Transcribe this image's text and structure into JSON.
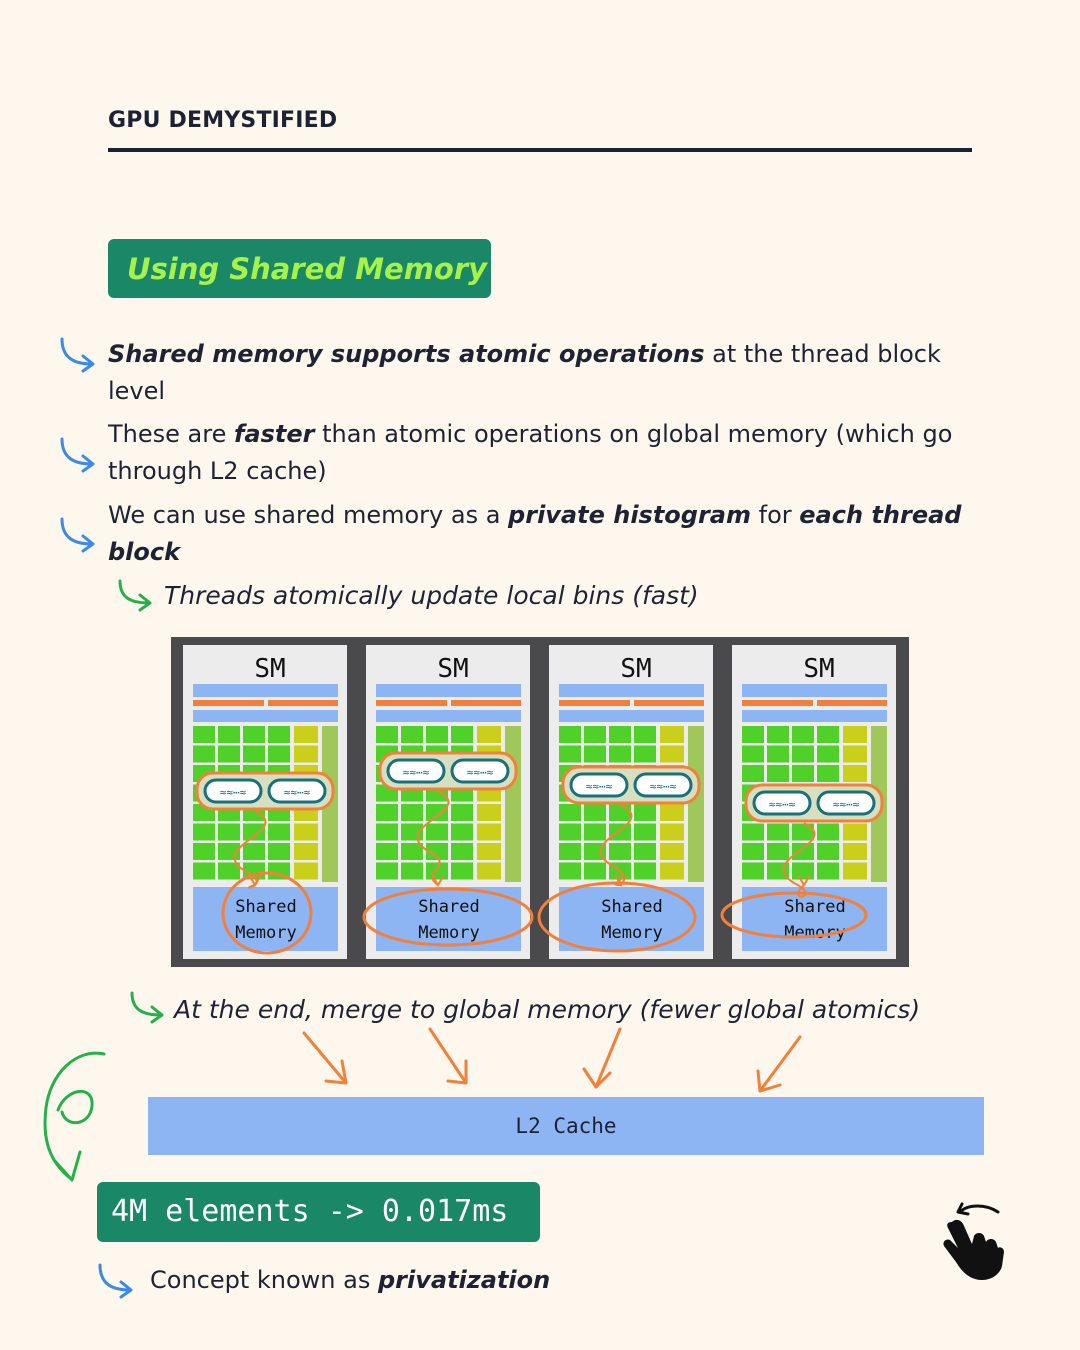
{
  "header": {
    "series_title": "GPU DEMYSTIFIED"
  },
  "section": {
    "title": "Using Shared Memory"
  },
  "bullets": [
    {
      "parts": [
        {
          "t": "Shared memory supports atomic operations",
          "b": true
        },
        {
          "t": " at the thread block level",
          "b": false
        }
      ]
    },
    {
      "parts": [
        {
          "t": "These are ",
          "b": false
        },
        {
          "t": "faster",
          "b": true
        },
        {
          "t": " than atomic operations on global memory (which go through L2 cache)",
          "b": false
        }
      ]
    },
    {
      "parts": [
        {
          "t": "We can use shared memory as a ",
          "b": false
        },
        {
          "t": "private histogram",
          "b": true
        },
        {
          "t": " for ",
          "b": false
        },
        {
          "t": "each thread block",
          "b": true
        }
      ]
    }
  ],
  "sub_bullet_1": "Threads atomically update local bins (fast)",
  "diagram": {
    "sm_label": "SM",
    "shared_line1": "Shared",
    "shared_line2": "Memory",
    "l2_label": "L2 Cache"
  },
  "sub_bullet_2": "At the end, merge to global memory (fewer global atomics)",
  "result": {
    "text": "4M elements -> 0.017ms"
  },
  "footer": {
    "prefix": "Concept known as ",
    "emphasis": "privatization"
  },
  "colors": {
    "accent_green": "#1a8867",
    "title_text": "#a7f24a",
    "arrow_blue": "#3a8be8",
    "orange": "#f2803a",
    "l2_blue": "#8db4f3"
  },
  "icons": {
    "bullet": "curved-arrow-icon",
    "swipe": "hand-swipe-icon"
  }
}
